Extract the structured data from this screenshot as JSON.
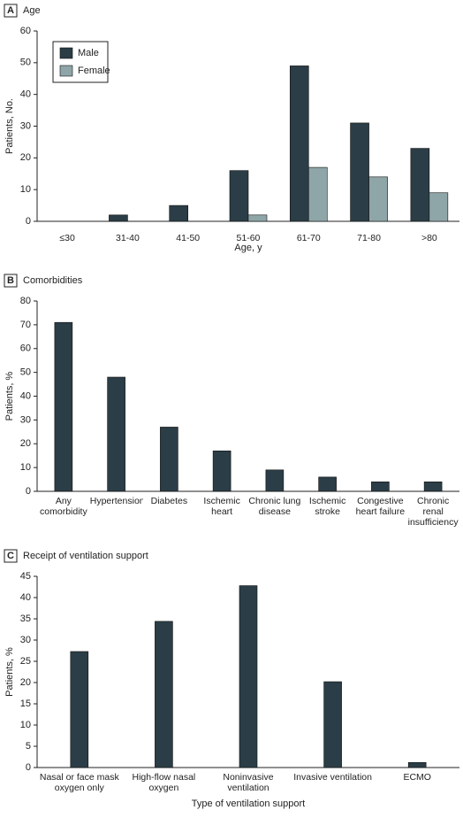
{
  "chart_data": [
    {
      "type": "bar",
      "panel": "A",
      "title": "Age",
      "categories": [
        "≤30",
        "31-40",
        "41-50",
        "51-60",
        "61-70",
        "71-80",
        ">80"
      ],
      "series": [
        {
          "name": "Male",
          "color": "#2b3d46",
          "values": [
            0,
            2,
            5,
            16,
            49,
            31,
            23
          ]
        },
        {
          "name": "Female",
          "color": "#8fa6a9",
          "values": [
            0,
            0,
            0,
            2,
            17,
            14,
            9
          ]
        }
      ],
      "xlabel": "Age, y",
      "ylabel": "Patients, No.",
      "ylim": [
        0,
        60
      ],
      "yticks": [
        0,
        10,
        20,
        30,
        40,
        50,
        60
      ],
      "legend": "top-left"
    },
    {
      "type": "bar",
      "panel": "B",
      "title": "Comorbidities",
      "categories": [
        "Any comorbidity",
        "Hypertension",
        "Diabetes",
        "Ischemic heart",
        "Chronic lung disease",
        "Ischemic stroke",
        "Congestive heart failure",
        "Chronic renal insufficiency"
      ],
      "values": [
        71,
        48,
        27,
        17,
        9,
        6,
        4,
        4
      ],
      "color": "#2b3d46",
      "ylabel": "Patients, %",
      "ylim": [
        0,
        80
      ],
      "yticks": [
        0,
        10,
        20,
        30,
        40,
        50,
        60,
        70,
        80
      ]
    },
    {
      "type": "bar",
      "panel": "C",
      "title": "Receipt of ventilation support",
      "categories": [
        "Nasal or face mask oxygen only",
        "High-flow nasal oxygen",
        "Noninvasive ventilation",
        "Invasive ventilation",
        "ECMO"
      ],
      "values": [
        27.3,
        34.4,
        42.8,
        20.2,
        1.2
      ],
      "color": "#2b3d46",
      "xlabel": "Type of ventilation support",
      "ylabel": "Patients, %",
      "ylim": [
        0,
        45
      ],
      "yticks": [
        0,
        5,
        10,
        15,
        20,
        25,
        30,
        35,
        40,
        45
      ]
    }
  ]
}
